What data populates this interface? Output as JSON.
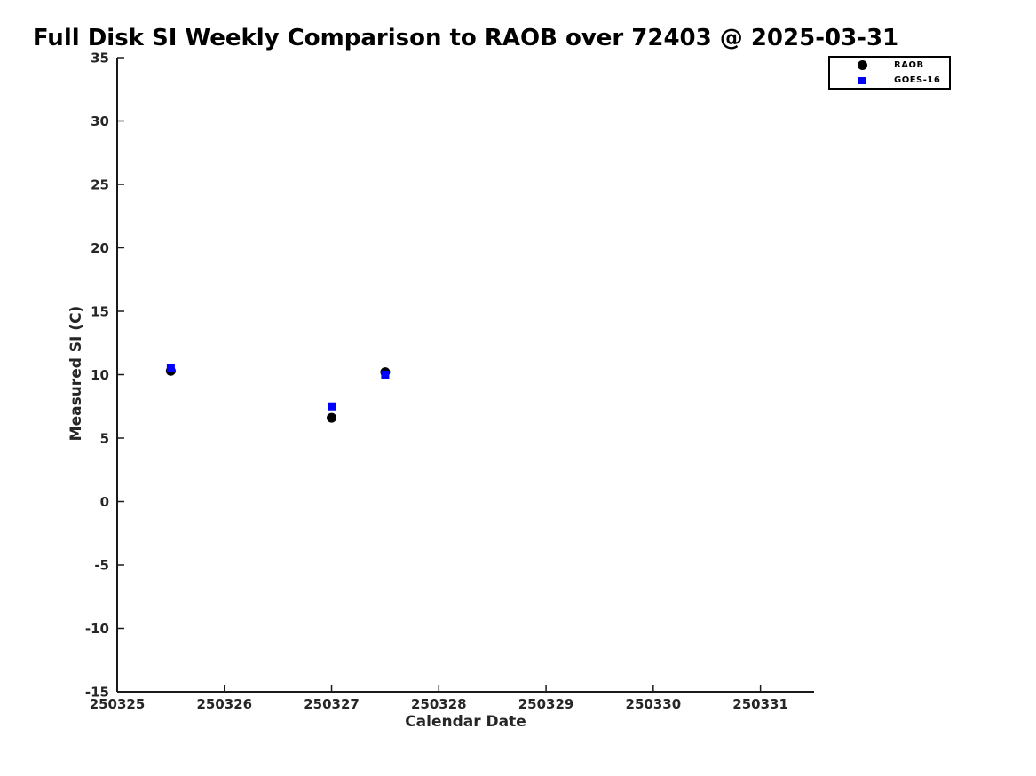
{
  "figure": {
    "background": "#ffffff",
    "text_color": "#262626",
    "accent_colors": {
      "raob": "#000000",
      "goes16": "#0000ff"
    }
  },
  "chart_data": {
    "type": "scatter",
    "title": "Full Disk SI Weekly Comparison to RAOB over 72403 @ 2025-03-31",
    "xlabel": "Calendar Date",
    "ylabel": "Measured SI (C)",
    "xlim": [
      250325,
      250331.5
    ],
    "ylim": [
      -15,
      35
    ],
    "xticks": [
      250325,
      250326,
      250327,
      250328,
      250329,
      250330,
      250331
    ],
    "yticks": [
      -15,
      -10,
      -5,
      0,
      5,
      10,
      15,
      20,
      25,
      30,
      35
    ],
    "grid": false,
    "legend_position": "outside-top-right",
    "series": [
      {
        "name": "RAOB",
        "marker": "circle",
        "color": "#000000",
        "x": [
          250325.5,
          250327.0,
          250327.5
        ],
        "y": [
          10.3,
          6.6,
          10.2
        ]
      },
      {
        "name": "GOES-16",
        "marker": "square",
        "color": "#0000ff",
        "x": [
          250325.5,
          250327.0,
          250327.5
        ],
        "y": [
          10.5,
          7.5,
          10.0
        ]
      }
    ]
  }
}
